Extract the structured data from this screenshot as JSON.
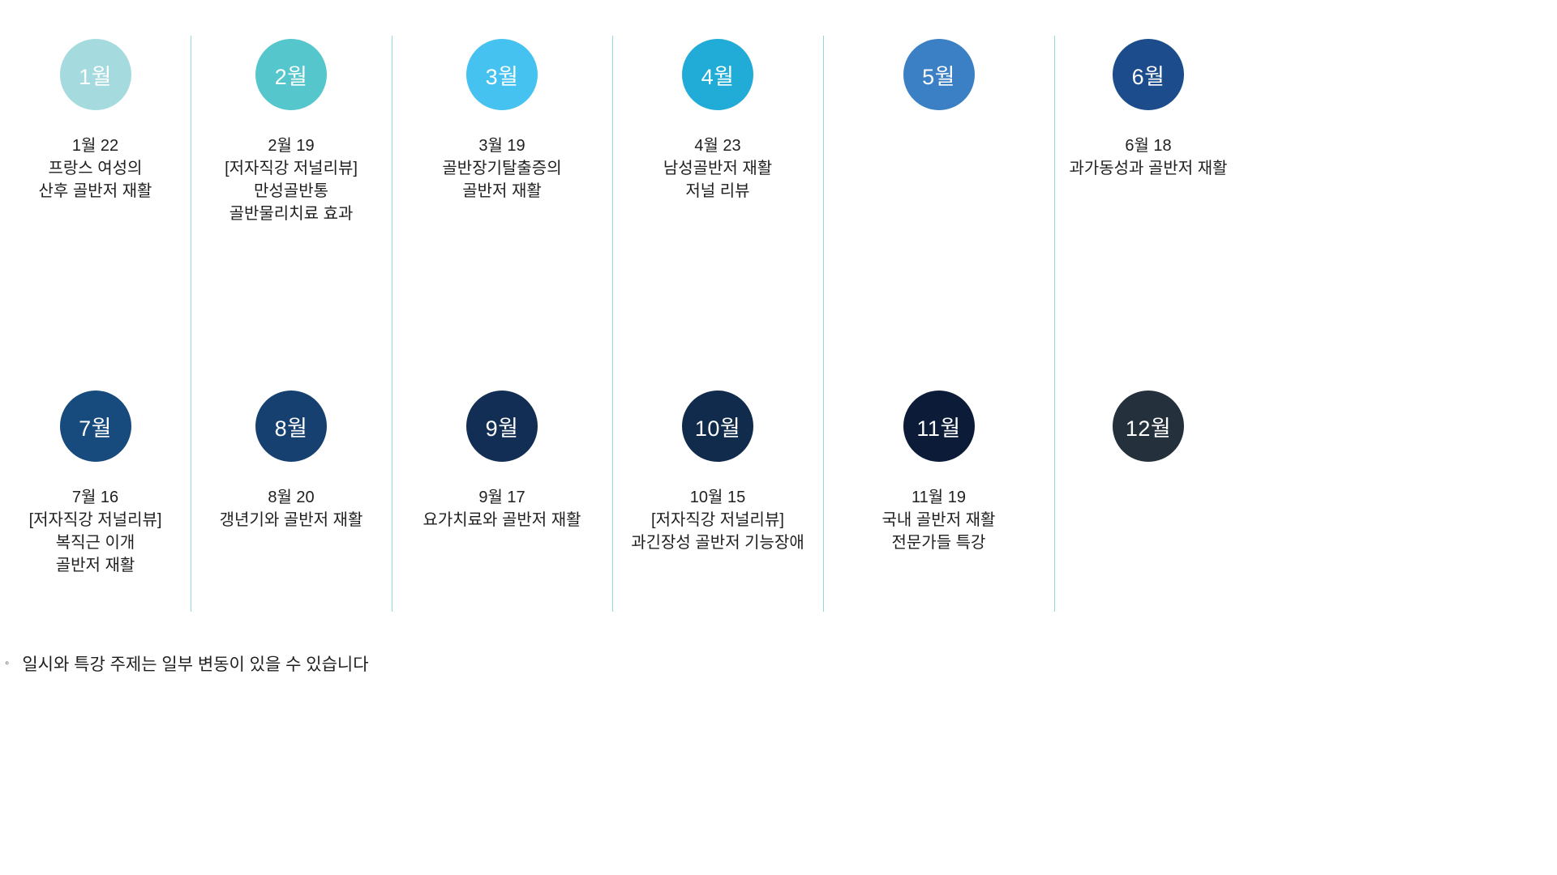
{
  "months": [
    {
      "label": "1월",
      "color": "#a5dbde",
      "lines": [
        "1월 22",
        "프랑스 여성의",
        "산후 골반저 재활"
      ]
    },
    {
      "label": "2월",
      "color": "#54c6cc",
      "lines": [
        "2월 19",
        "[저자직강 저널리뷰]",
        "만성골반통",
        "골반물리치료 효과"
      ]
    },
    {
      "label": "3월",
      "color": "#45c2f0",
      "lines": [
        "3월 19",
        "골반장기탈출증의",
        "골반저 재활"
      ]
    },
    {
      "label": "4월",
      "color": "#21acd7",
      "lines": [
        "4월 23",
        "남성골반저 재활",
        "저널 리뷰"
      ]
    },
    {
      "label": "5월",
      "color": "#3b80c4",
      "lines": []
    },
    {
      "label": "6월",
      "color": "#1c4c8b",
      "lines": [
        "6월 18",
        "과가동성과 골반저 재활"
      ]
    },
    {
      "label": "7월",
      "color": "#174a7d",
      "lines": [
        "7월 16",
        "[저자직강 저널리뷰]",
        "복직근 이개",
        "골반저 재활"
      ]
    },
    {
      "label": "8월",
      "color": "#15406f",
      "lines": [
        "8월 20",
        "갱년기와 골반저 재활"
      ]
    },
    {
      "label": "9월",
      "color": "#122e54",
      "lines": [
        "9월 17",
        "요가치료와 골반저 재활"
      ]
    },
    {
      "label": "10월",
      "color": "#112b4d",
      "lines": [
        "10월 15",
        "[저자직강 저널리뷰]",
        "과긴장성 골반저 기능장애"
      ]
    },
    {
      "label": "11월",
      "color": "#0b1b38",
      "lines": [
        "11월 19",
        "국내 골반저 재활",
        "전문가들 특강"
      ]
    },
    {
      "label": "12월",
      "color": "#25303d",
      "lines": []
    }
  ],
  "footnote": {
    "marker": "◦",
    "text": "일시와 특강 주제는 일부 변동이 있을 수 있습니다"
  },
  "colors": {
    "divider": "#8fd8de",
    "text": "#1f1f1f",
    "circle_text": "#ffffff"
  },
  "layout_dividers_x": [
    235,
    483,
    755,
    1015,
    1300
  ]
}
